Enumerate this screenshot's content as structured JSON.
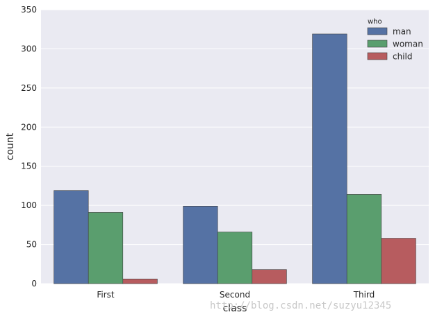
{
  "colors": {
    "background": "#eaeaf2",
    "grid": "#ffffff",
    "bar_edge": "#3f3f3f"
  },
  "watermark": "http://blog.csdn.net/suzyu12345",
  "chart_data": {
    "type": "bar",
    "categories": [
      "First",
      "Second",
      "Third"
    ],
    "series": [
      {
        "name": "man",
        "values": [
          119,
          99,
          319
        ],
        "color": "#5572a4"
      },
      {
        "name": "woman",
        "values": [
          91,
          66,
          114
        ],
        "color": "#5a9e6e"
      },
      {
        "name": "child",
        "values": [
          6,
          18,
          58
        ],
        "color": "#b75c5f"
      }
    ],
    "title": "",
    "xlabel": "class",
    "ylabel": "count",
    "ylim": [
      0,
      350
    ],
    "yticks": [
      0,
      50,
      100,
      150,
      200,
      250,
      300,
      350
    ],
    "grid": true,
    "legend": {
      "title": "who",
      "placement": "top-right"
    }
  }
}
